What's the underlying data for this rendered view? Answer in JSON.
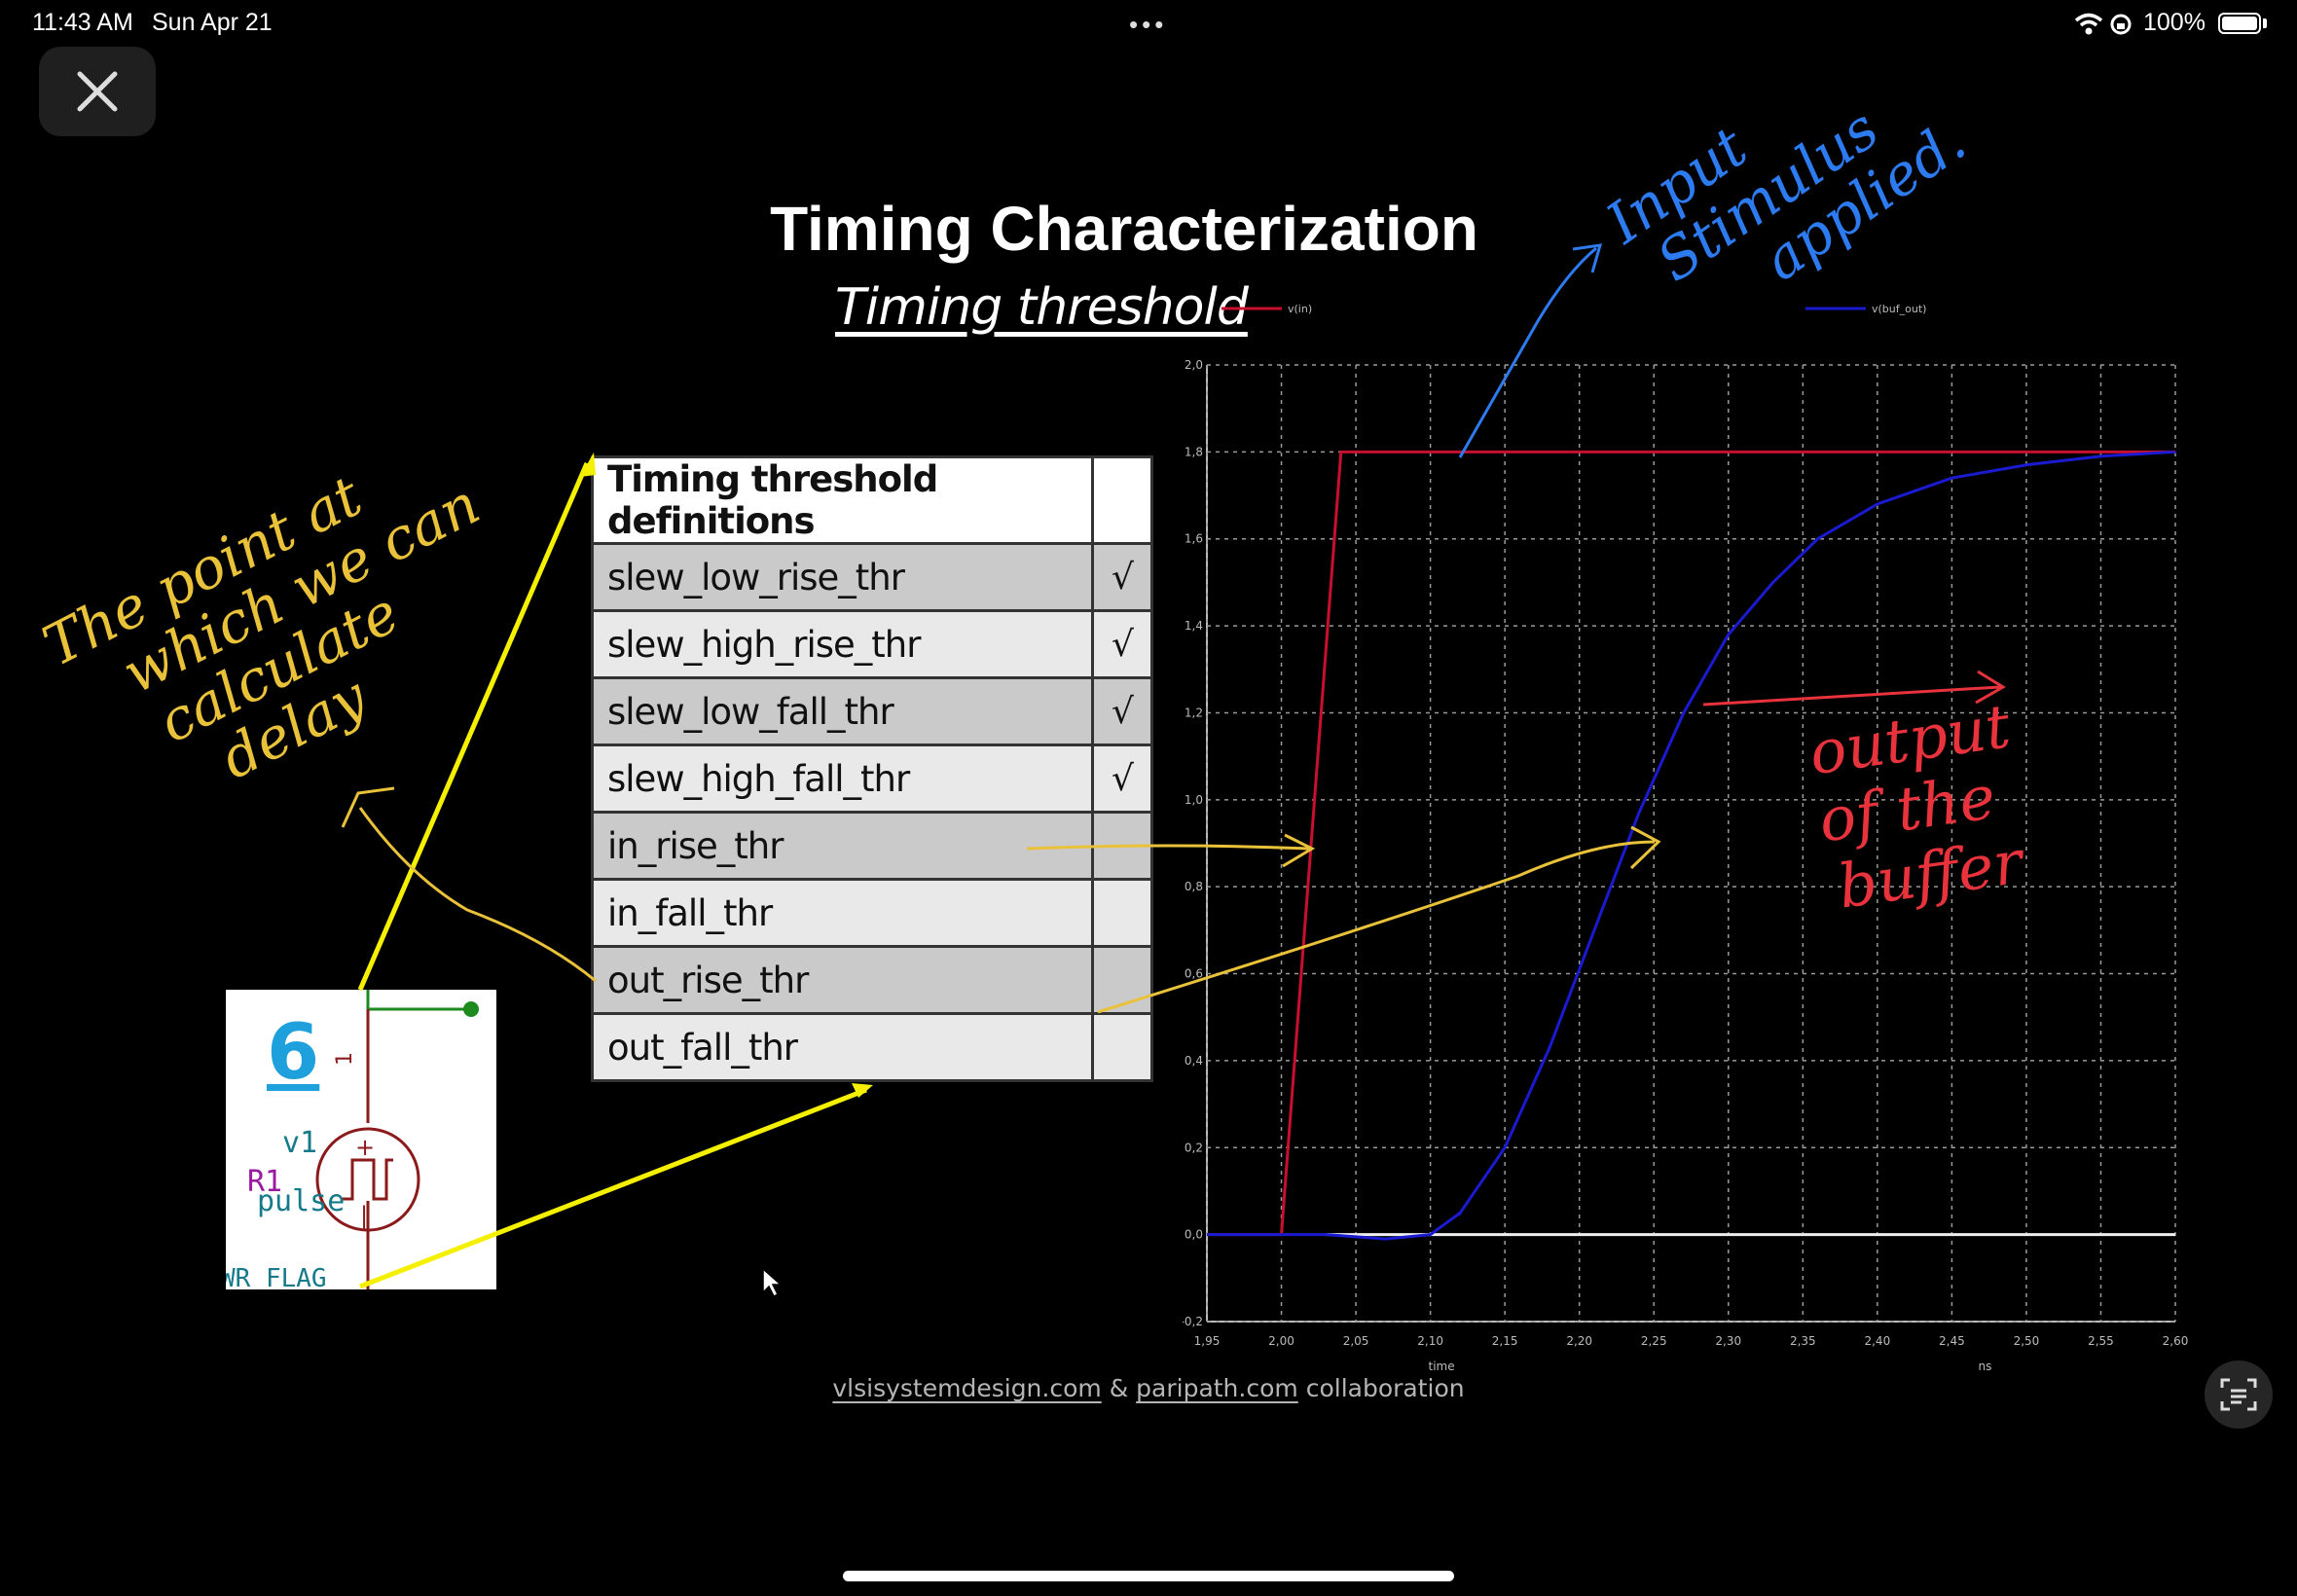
{
  "status_bar": {
    "time": "11:43 AM",
    "date": "Sun Apr 21",
    "battery": "100%"
  },
  "slide": {
    "title": "Timing Characterization",
    "subtitle": "Timing threshold"
  },
  "table": {
    "header": "Timing threshold definitions",
    "rows": [
      {
        "label": "slew_low_rise_thr",
        "mark": "√"
      },
      {
        "label": "slew_high_rise_thr",
        "mark": "√"
      },
      {
        "label": "slew_low_fall_thr",
        "mark": "√"
      },
      {
        "label": "slew_high_fall_thr",
        "mark": "√"
      },
      {
        "label": "in_rise_thr",
        "mark": ""
      },
      {
        "label": "in_fall_thr",
        "mark": ""
      },
      {
        "label": "out_rise_thr",
        "mark": ""
      },
      {
        "label": "out_fall_thr",
        "mark": ""
      }
    ]
  },
  "schematic": {
    "number": "6",
    "source_name": "v1",
    "resistor": "R1",
    "source_type": "pulse",
    "flag": "WR_FLAG"
  },
  "chart_data": {
    "type": "line",
    "legend": [
      "v(in)",
      "v(buf_out)"
    ],
    "xlabel": "time",
    "xunit": "ns",
    "xlim": [
      1.95,
      2.6
    ],
    "ylim": [
      -0.2,
      2.0
    ],
    "xticks": [
      "1,95",
      "2,00",
      "2,05",
      "2,10",
      "2,15",
      "2,20",
      "2,25",
      "2,30",
      "2,35",
      "2,40",
      "2,45",
      "2,50",
      "2,55",
      "2,60"
    ],
    "yticks": [
      "2,0",
      "1,8",
      "1,6",
      "1,4",
      "1,2",
      "1,0",
      "0,8",
      "0,6",
      "0,4",
      "0,2",
      "0,0",
      "-0,2"
    ],
    "series": [
      {
        "name": "v(in)",
        "color": "#c8102e",
        "x": [
          1.95,
          2.0,
          2.04,
          2.6
        ],
        "y": [
          0.0,
          0.0,
          1.8,
          1.8
        ]
      },
      {
        "name": "v(buf_out)",
        "color": "#1a1ad0",
        "x": [
          1.95,
          2.03,
          2.07,
          2.1,
          2.12,
          2.15,
          2.18,
          2.21,
          2.24,
          2.27,
          2.3,
          2.33,
          2.36,
          2.4,
          2.45,
          2.5,
          2.55,
          2.6
        ],
        "y": [
          0,
          0,
          -0.01,
          0,
          0.05,
          0.2,
          0.43,
          0.7,
          0.97,
          1.2,
          1.38,
          1.5,
          1.6,
          1.68,
          1.74,
          1.77,
          1.79,
          1.8
        ]
      }
    ]
  },
  "annotations": {
    "input_note": [
      "Input",
      "Stimulus",
      "applied."
    ],
    "delay_note": [
      "The point at",
      "which we can",
      "calculate",
      "delay"
    ],
    "output_note": [
      "output",
      "of the",
      "buffer"
    ]
  },
  "footer": {
    "site1": "vlsisystemdesign.com",
    "amp": "&",
    "site2": "paripath.com",
    "tail": "collaboration"
  }
}
